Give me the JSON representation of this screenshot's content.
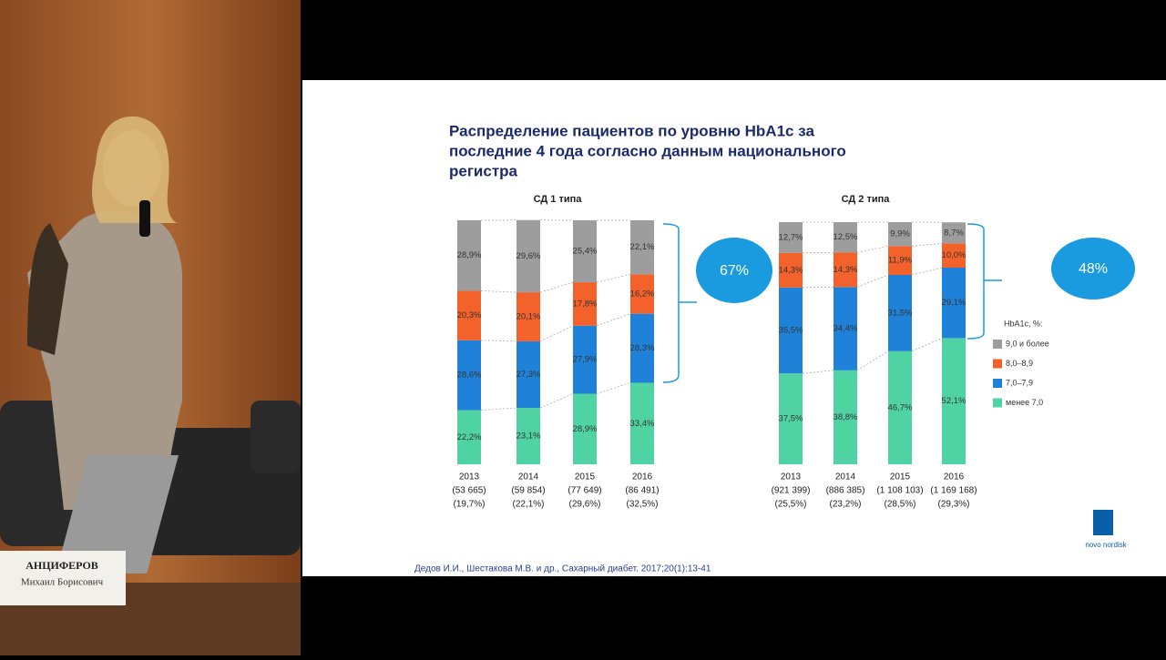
{
  "slide_title": [
    "Распределение пациентов по уровню HbA1c за",
    "последние 4 года согласно данным национального",
    "регистра"
  ],
  "citation": "Дедов И.И., Шестакова М.В. и др., Сахарный диабет. 2017;20(1):13-41",
  "logo": "novo nordisk",
  "nameplate": [
    "АНЦИФЕРОВ",
    "Михаил Борисович"
  ],
  "chart_data": [
    {
      "type": "stacked_bar",
      "title": "СД 1 типа",
      "annotation": "67%",
      "categories": [
        "2013",
        "2014",
        "2015",
        "2016"
      ],
      "category_counts": [
        "(53 665)",
        "(59 854)",
        "(77 649)",
        "(86 491)"
      ],
      "category_shares": [
        "(19,7%)",
        "(22,1%)",
        "(29,6%)",
        "(32,5%)"
      ],
      "ylim": [
        0,
        100
      ],
      "series": [
        {
          "name": "менее 7,0",
          "color": "#4fd3a3",
          "values": [
            22.2,
            23.1,
            28.9,
            33.4
          ],
          "value_labels": [
            "22,2%",
            "23,1%",
            "28,9%",
            "33,4%"
          ]
        },
        {
          "name": "7,0–7,9",
          "color": "#1f82d8",
          "values": [
            28.6,
            27.3,
            27.9,
            28.3
          ],
          "value_labels": [
            "28,6%",
            "27,3%",
            "27,9%",
            "28,3%"
          ]
        },
        {
          "name": "8,0–8,9",
          "color": "#f3622b",
          "values": [
            20.3,
            20.1,
            17.8,
            16.2
          ],
          "value_labels": [
            "20,3%",
            "20,1%",
            "17,8%",
            "16,2%"
          ]
        },
        {
          "name": "9,0 и более",
          "color": "#9d9d9d",
          "values": [
            28.9,
            29.6,
            25.4,
            22.1
          ],
          "value_labels": [
            "28,9%",
            "29,6%",
            "25,4%",
            "22,1%"
          ]
        }
      ]
    },
    {
      "type": "stacked_bar",
      "title": "СД 2 типа",
      "annotation": "48%",
      "legend_title": "HbA1c, %:",
      "categories": [
        "2013",
        "2014",
        "2015",
        "2016"
      ],
      "category_counts": [
        "(921 399)",
        "(886 385)",
        "(1 108 103)",
        "(1 169 168)"
      ],
      "category_shares": [
        "(25,5%)",
        "(23,2%)",
        "(28,5%)",
        "(29,3%)"
      ],
      "ylim": [
        0,
        100
      ],
      "series": [
        {
          "name": "менее 7,0",
          "color": "#4fd3a3",
          "values": [
            37.5,
            38.8,
            46.7,
            52.1
          ],
          "value_labels": [
            "37,5%",
            "38,8%",
            "46,7%",
            "52,1%"
          ]
        },
        {
          "name": "7,0–7,9",
          "color": "#1f82d8",
          "values": [
            35.5,
            34.4,
            31.5,
            29.1
          ],
          "value_labels": [
            "35,5%",
            "34,4%",
            "31,5%",
            "29,1%"
          ]
        },
        {
          "name": "8,0–8,9",
          "color": "#f3622b",
          "values": [
            14.3,
            14.3,
            11.9,
            10.0
          ],
          "value_labels": [
            "14,3%",
            "14,3%",
            "11,9%",
            "10,0%"
          ]
        },
        {
          "name": "9,0 и более",
          "color": "#9d9d9d",
          "values": [
            12.7,
            12.5,
            9.9,
            8.7
          ],
          "value_labels": [
            "12,7%",
            "12,5%",
            "9,9%",
            "8,7%"
          ]
        }
      ]
    }
  ]
}
